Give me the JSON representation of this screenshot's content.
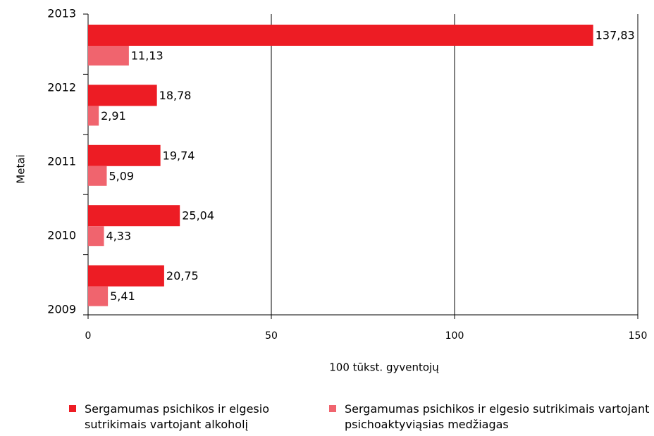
{
  "chart_data": {
    "type": "bar",
    "orientation": "horizontal",
    "categories": [
      "2013",
      "2012",
      "2011",
      "2010",
      "2009"
    ],
    "series": [
      {
        "name": "Sergamumas psichikos ir elgesio sutrikimais vartojant alkoholį",
        "color": "#ed1c24",
        "values": [
          137.83,
          18.78,
          19.74,
          25.04,
          20.75
        ],
        "value_labels": [
          "137,83",
          "18,78",
          "19,74",
          "25,04",
          "20,75"
        ]
      },
      {
        "name": "Sergamumas psichikos ir elgesio sutrikimais vartojant psichoaktyviąsias medžiagas",
        "color": "#f0646e",
        "values": [
          11.13,
          2.91,
          5.09,
          4.33,
          5.41
        ],
        "value_labels": [
          "11,13",
          "2,91",
          "5,09",
          "4,33",
          "5,41"
        ]
      }
    ],
    "xlim": [
      0,
      150
    ],
    "xticks": [
      0,
      50,
      100,
      150
    ],
    "grid": true,
    "xlabel": "100 tūkst. gyventojų",
    "ylabel": "Metai",
    "legend": "bottom"
  }
}
